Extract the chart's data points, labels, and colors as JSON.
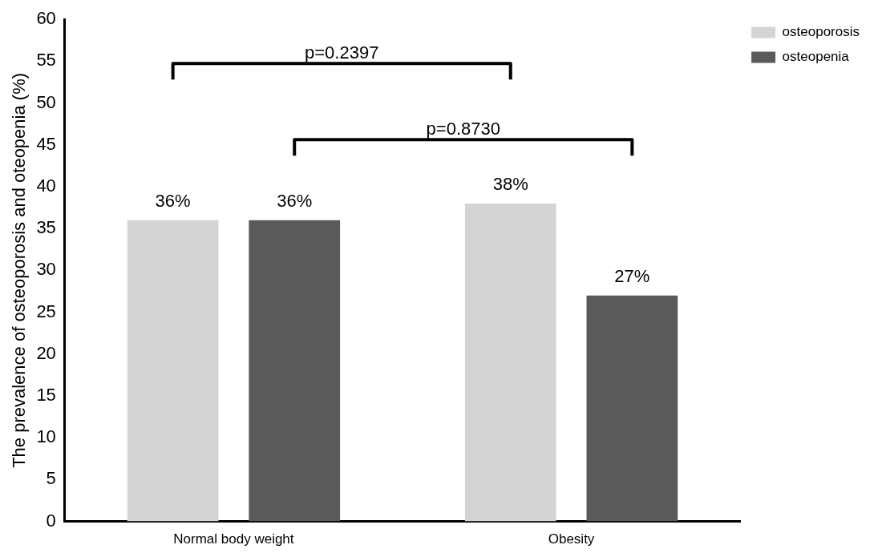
{
  "chart_data": {
    "type": "bar",
    "ylabel": "The prevalence of osteoporosis and oteopenia (%)",
    "categories": [
      "Normal body weight",
      "Obesity"
    ],
    "series": [
      {
        "name": "osteoporosis",
        "color": "#d4d4d4",
        "values": [
          36,
          38
        ],
        "value_labels": [
          "36%",
          "38%"
        ]
      },
      {
        "name": "osteopenia",
        "color": "#5a5a5a",
        "values": [
          36,
          27
        ],
        "value_labels": [
          "36%",
          "27%"
        ]
      }
    ],
    "ylim": [
      0,
      60
    ],
    "yticks": [
      0,
      5,
      10,
      15,
      20,
      25,
      30,
      35,
      40,
      45,
      50,
      55,
      60
    ],
    "grid": false,
    "legend": "top right",
    "annotations": [
      "p=0.2397",
      "p=0.8730"
    ]
  }
}
